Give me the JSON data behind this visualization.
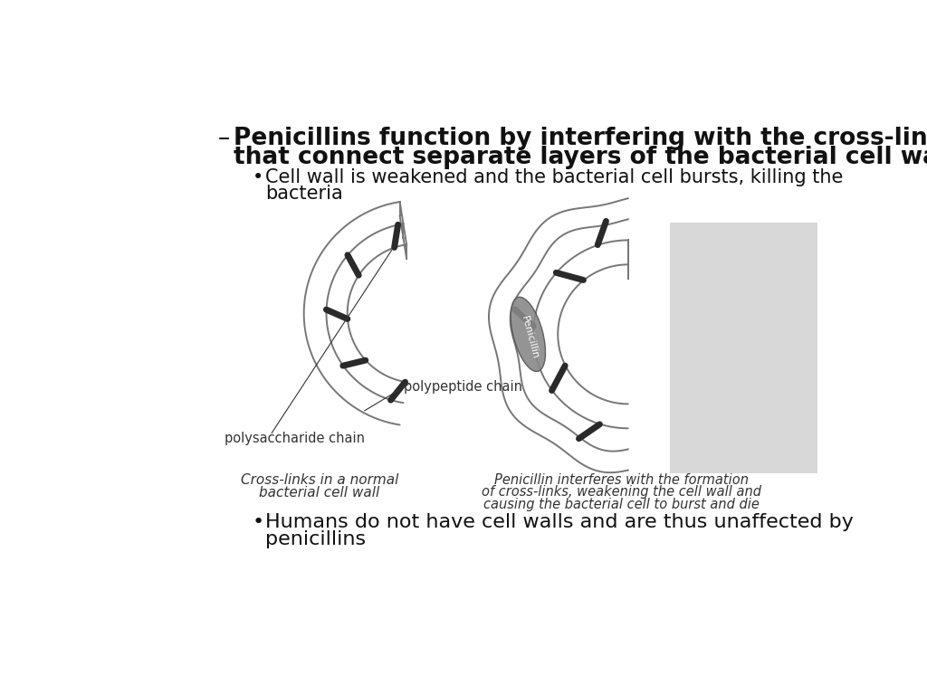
{
  "bg_color": "#ffffff",
  "title_dash": "–",
  "main_bullet": "Penicillins function by interfering with the cross-links\nthat connect separate layers of the bacterial cell wall",
  "sub_bullet1": "Cell wall is weakened and the bacterial cell bursts, killing the\nbacteria",
  "sub_bullet2": "Humans do not have cell walls and are thus unaffected by\npenicillins",
  "label_polysaccharide": "polysaccharide chain",
  "label_polypeptide": "polypeptide chain",
  "caption_left_line1": "Cross-links in a normal",
  "caption_left_line2": "bacterial cell wall",
  "caption_right_line1": "Penicillin interferes with the formation",
  "caption_right_line2": "of cross-links, weakening the cell wall and",
  "caption_right_line3": "causing the bacterial cell to burst and die",
  "penicillin_label": "Penicillin",
  "diagram_color": "#777777",
  "crosslink_color": "#2a2a2a",
  "text_color": "#111111",
  "caption_color": "#333333",
  "penicillin_fill": "#888888",
  "penicillin_edge": "#555555",
  "bg_right_gray": "#d8d8d8"
}
